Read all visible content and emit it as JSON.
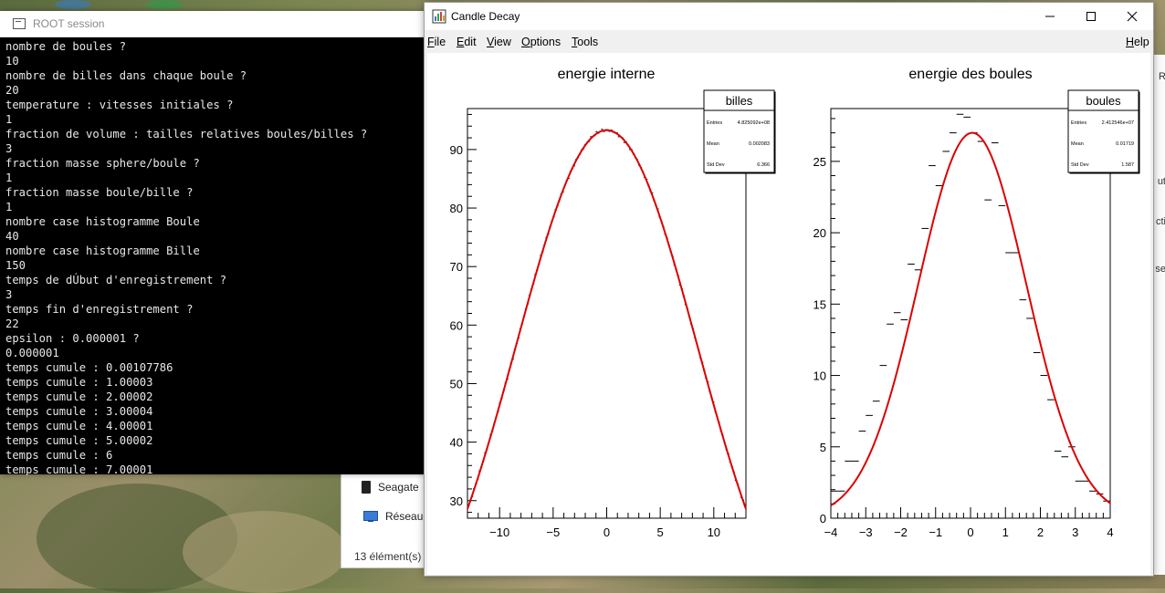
{
  "root_session": {
    "title": "ROOT session",
    "lines": [
      "nombre de boules ?",
      "10",
      "nombre de billes dans chaque boule ?",
      "20",
      "temperature : vitesses initiales ?",
      "1",
      "fraction de volume : tailles relatives boules/billes ?",
      "3",
      "fraction masse sphere/boule ?",
      "1",
      "fraction masse boule/bille ?",
      "1",
      "nombre case histogramme Boule",
      "40",
      "nombre case histogramme Bille",
      "150",
      "temps de dÚbut d'enregistrement ?",
      "3",
      "temps fin d'enregistrement ?",
      "22",
      "epsilon : 0.000001 ?",
      "0.000001",
      "temps cumule : 0.00107786",
      "temps cumule : 1.00003",
      "temps cumule : 2.00002",
      "temps cumule : 3.00004",
      "temps cumule : 4.00001",
      "temps cumule : 5.00002",
      "temps cumule : 6",
      "temps cumule : 7.00001"
    ]
  },
  "explorer": {
    "items": [
      "Seagate",
      "Réseau"
    ],
    "status": "13 élément(s)"
  },
  "right_sliver": {
    "fragments": [
      "R",
      "ut",
      "cti",
      "se"
    ]
  },
  "candle_window": {
    "title": "Candle Decay",
    "menus": {
      "file": {
        "first": "F",
        "rest": "ile"
      },
      "edit": {
        "first": "E",
        "rest": "dit"
      },
      "view": {
        "first": "V",
        "rest": "iew"
      },
      "options": {
        "first": "O",
        "rest": "ptions"
      },
      "tools": {
        "first": "T",
        "rest": "ools"
      },
      "help": {
        "first": "H",
        "rest": "elp"
      }
    },
    "colors": {
      "fit": "#dd0000",
      "hist": "#000000"
    }
  },
  "chart_data": [
    {
      "type": "line",
      "title": "energie interne",
      "xlim": [
        -13,
        13
      ],
      "ylim": [
        27,
        97
      ],
      "xticks": [
        -10,
        -5,
        0,
        5,
        10
      ],
      "yticks": [
        30,
        40,
        50,
        60,
        70,
        80,
        90
      ],
      "fit": {
        "shape": "gaussian",
        "amplitude": 93.3,
        "mean": 0,
        "sigma": 8.45,
        "offset": 0
      },
      "hist_bins": 150,
      "stats": {
        "name": "billes",
        "entries_label": "Entries",
        "entries": "4.825092e+08",
        "mean_label": "Mean",
        "mean": "0.002083",
        "stddev_label": "Std Dev",
        "stddev": "6.366"
      }
    },
    {
      "type": "line",
      "title": "energie des boules",
      "xlim": [
        -4,
        4
      ],
      "ylim": [
        0,
        28.7
      ],
      "xticks": [
        -4,
        -3,
        -2,
        -1,
        0,
        1,
        2,
        3,
        4
      ],
      "yticks": [
        0,
        5,
        10,
        15,
        20,
        25
      ],
      "fit": {
        "shape": "gaussian",
        "amplitude": 27.0,
        "mean": 0.05,
        "sigma": 1.55,
        "offset": 0
      },
      "hist_bins": 40,
      "hist_values": [
        1.9,
        1.9,
        4.0,
        4.0,
        6.1,
        7.2,
        8.2,
        10.7,
        13.6,
        14.4,
        13.9,
        17.8,
        17.4,
        20.3,
        24.7,
        23.3,
        25.7,
        27.0,
        28.3,
        28.1,
        27.0,
        26.4,
        22.3,
        26.3,
        21.9,
        18.6,
        18.6,
        15.3,
        14.0,
        11.6,
        10.0,
        8.3,
        4.7,
        4.3,
        5.0,
        2.6,
        2.6,
        1.9,
        1.7,
        1.2
      ],
      "stats": {
        "name": "boules",
        "entries_label": "Entries",
        "entries": "2.412546e+07",
        "mean_label": "Mean",
        "mean": "0.01719",
        "stddev_label": "Std Dev",
        "stddev": "1.587"
      }
    }
  ]
}
